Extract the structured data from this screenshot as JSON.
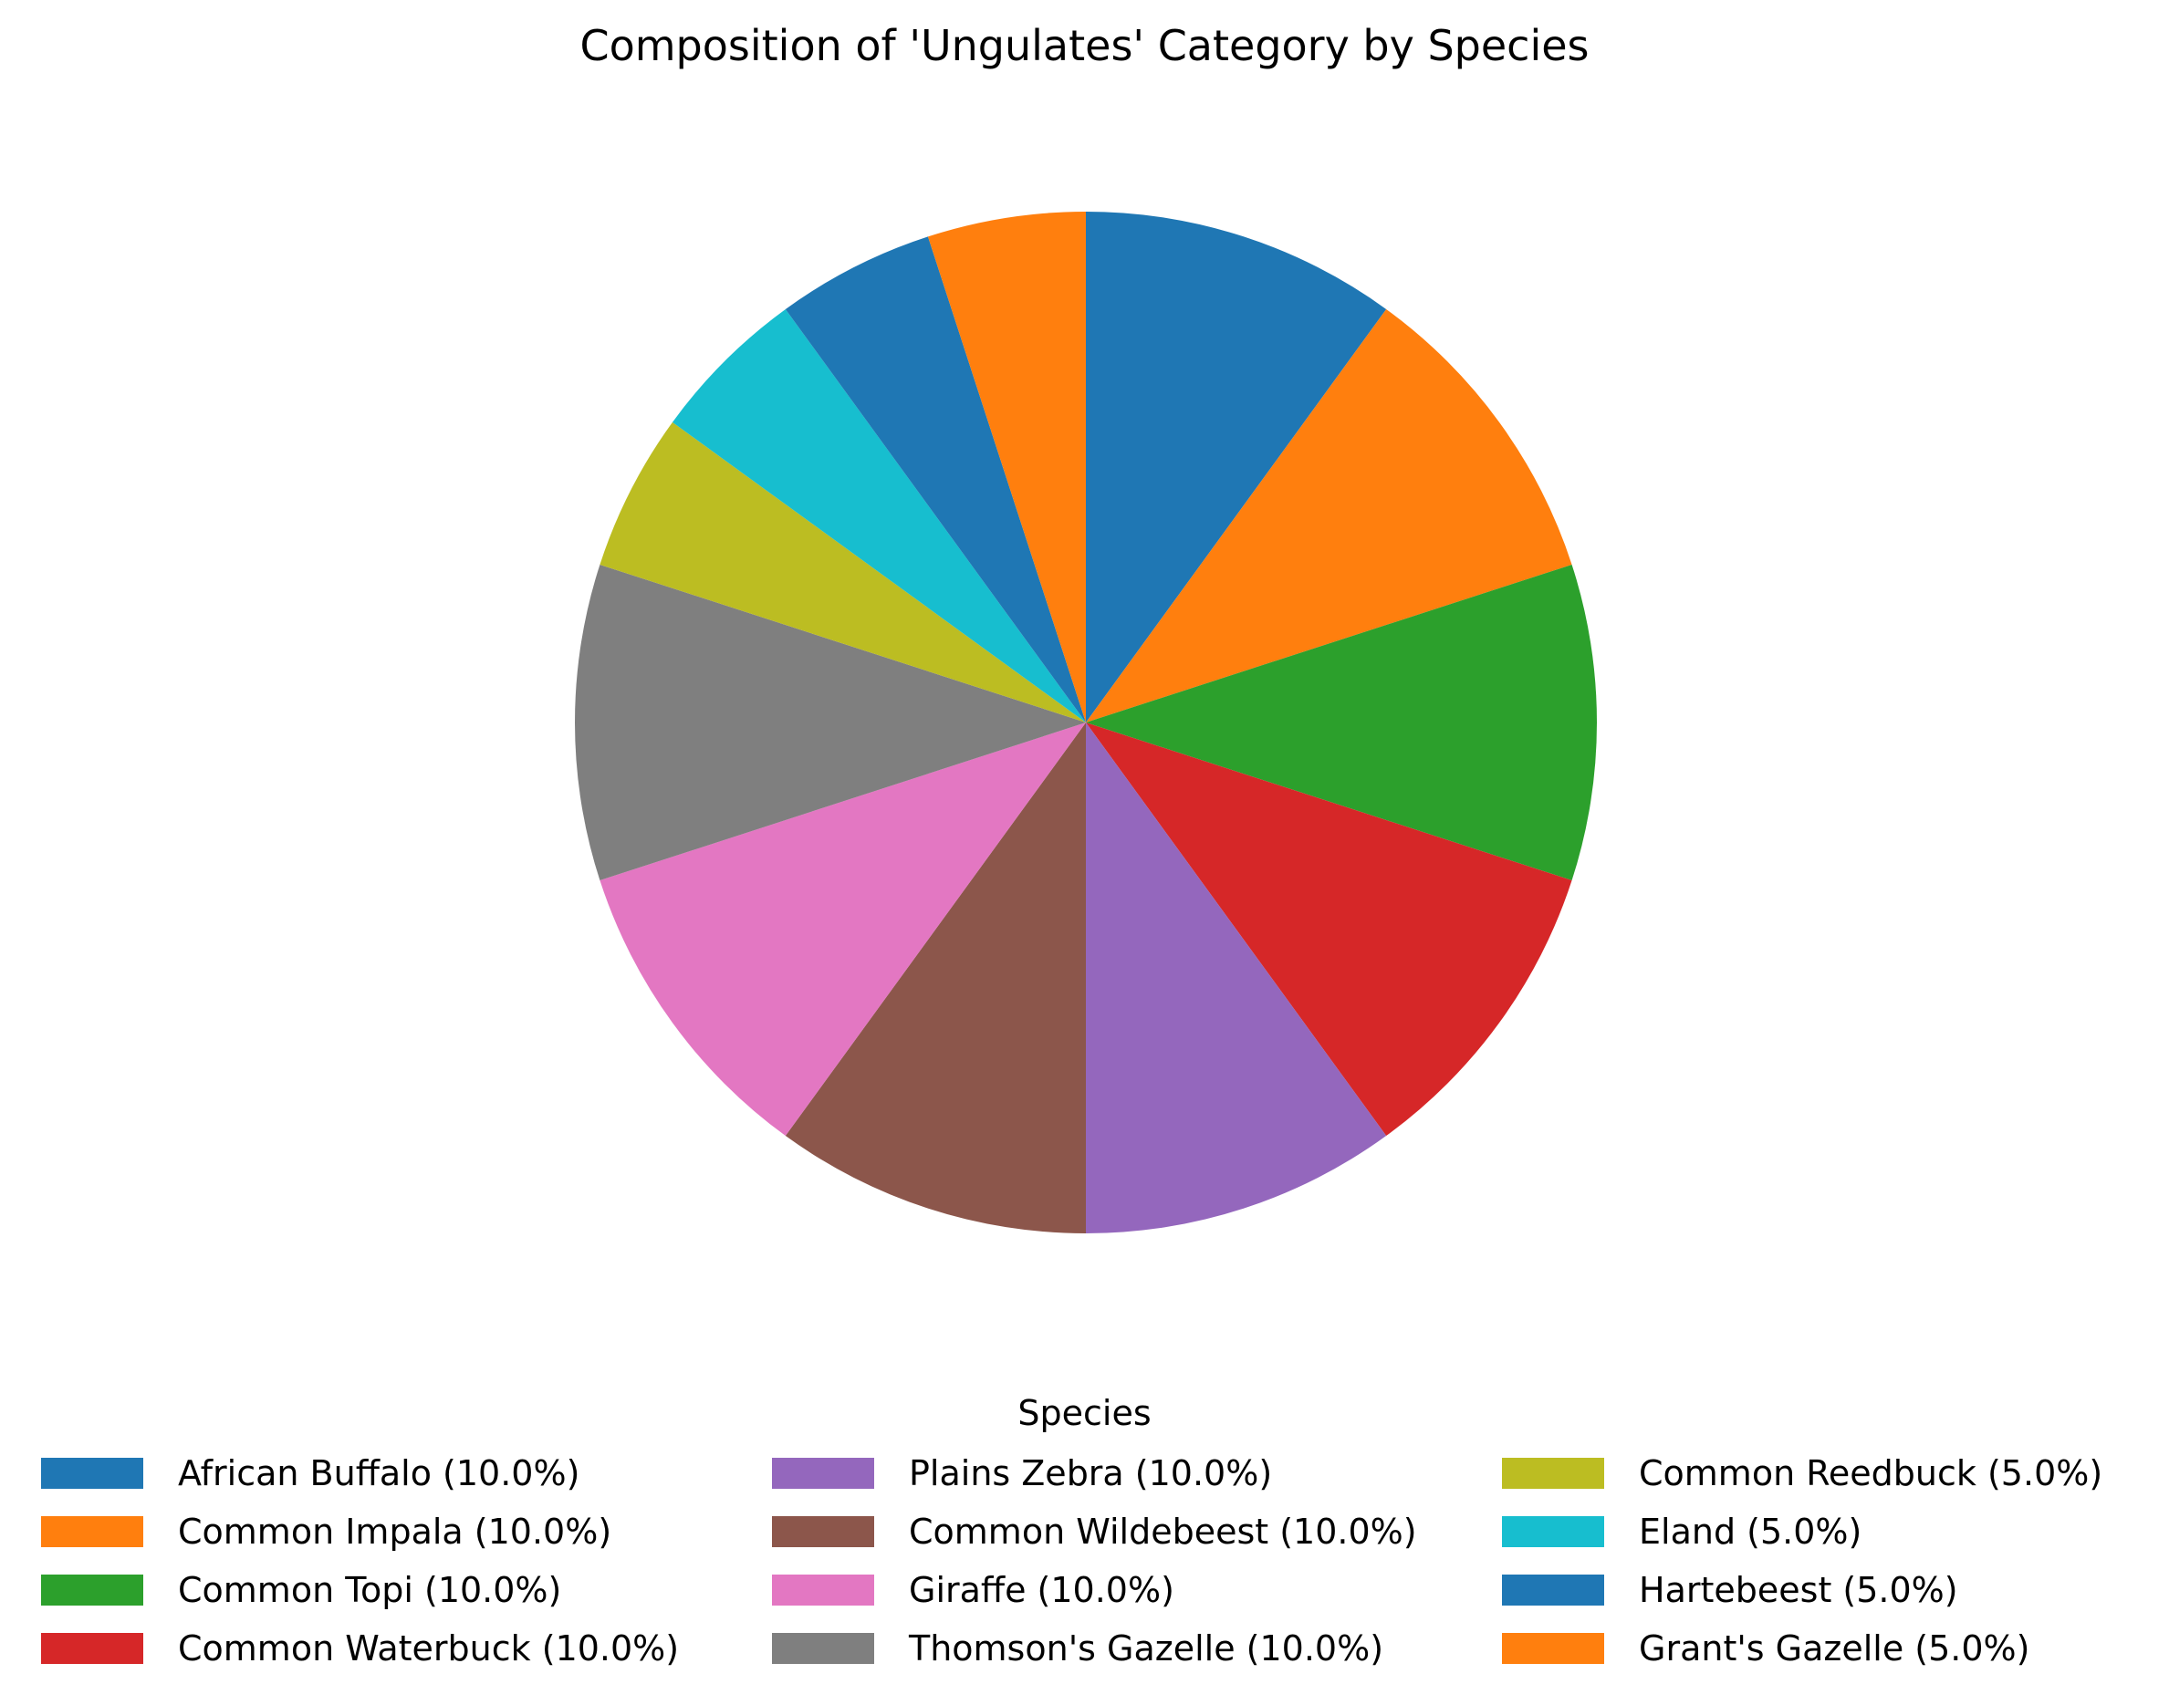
{
  "chart_data": {
    "type": "pie",
    "title": "Composition of 'Ungulates' Category by Species",
    "legend_title": "Species",
    "legend_placement": "bottom-center",
    "start_angle": "top",
    "direction": "clockwise",
    "slices": [
      {
        "label": "African Buffalo",
        "value": 10.0,
        "legend": "African Buffalo (10.0%)",
        "color": "#1f77b4"
      },
      {
        "label": "Common Impala",
        "value": 10.0,
        "legend": "Common Impala (10.0%)",
        "color": "#ff7f0e"
      },
      {
        "label": "Common Topi",
        "value": 10.0,
        "legend": "Common Topi (10.0%)",
        "color": "#2ca02c"
      },
      {
        "label": "Common Waterbuck",
        "value": 10.0,
        "legend": "Common Waterbuck (10.0%)",
        "color": "#d62728"
      },
      {
        "label": "Plains Zebra",
        "value": 10.0,
        "legend": "Plains Zebra (10.0%)",
        "color": "#9467bd"
      },
      {
        "label": "Common Wildebeest",
        "value": 10.0,
        "legend": "Common Wildebeest (10.0%)",
        "color": "#8c564b"
      },
      {
        "label": "Giraffe",
        "value": 10.0,
        "legend": "Giraffe (10.0%)",
        "color": "#e377c2"
      },
      {
        "label": "Thomson's Gazelle",
        "value": 10.0,
        "legend": "Thomson's Gazelle (10.0%)",
        "color": "#7f7f7f"
      },
      {
        "label": "Common Reedbuck",
        "value": 5.0,
        "legend": "Common Reedbuck (5.0%)",
        "color": "#bcbd22"
      },
      {
        "label": "Eland",
        "value": 5.0,
        "legend": "Eland (5.0%)",
        "color": "#17becf"
      },
      {
        "label": "Hartebeest",
        "value": 5.0,
        "legend": "Hartebeest (5.0%)",
        "color": "#1f77b4"
      },
      {
        "label": "Grant's Gazelle",
        "value": 5.0,
        "legend": "Grant's Gazelle (5.0%)",
        "color": "#ff7f0e"
      }
    ]
  }
}
